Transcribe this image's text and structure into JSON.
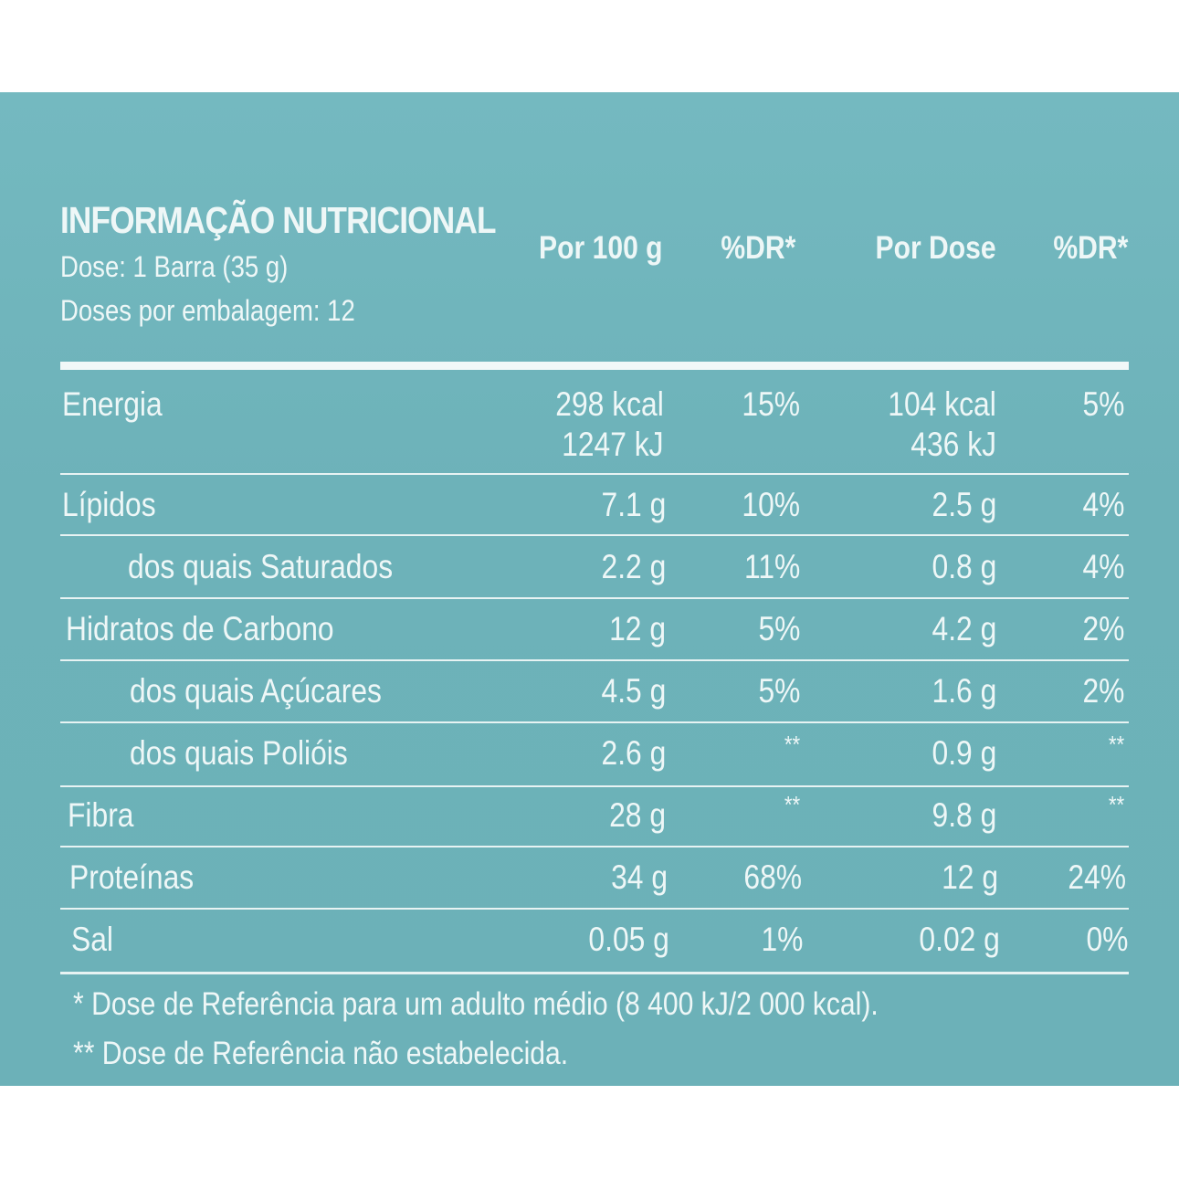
{
  "title": "INFORMAÇÃO NUTRICIONAL",
  "dose": "Dose: 1 Barra (35 g)",
  "doses_per_package": "Doses por embalagem: 12",
  "headers": [
    "Por 100 g",
    "%DR*",
    "Por Dose",
    "%DR*"
  ],
  "rows": [
    {
      "label": "Energia",
      "per100_1": "298 kcal",
      "per100_2": "1247 kJ",
      "dr100": "15%",
      "perdose_1": "104 kcal",
      "perdose_2": "436 kJ",
      "drdose": "5%"
    },
    {
      "label": "Lípidos",
      "per100_1": "7.1 g",
      "dr100": "10%",
      "perdose_1": "2.5 g",
      "drdose": "4%"
    },
    {
      "label": "dos quais Saturados",
      "per100_1": "2.2 g",
      "dr100": "11%",
      "perdose_1": "0.8 g",
      "drdose": "4%"
    },
    {
      "label": "Hidratos de Carbono",
      "per100_1": "12 g",
      "dr100": "5%",
      "perdose_1": "4.2 g",
      "drdose": "2%"
    },
    {
      "label": "dos quais Açúcares",
      "per100_1": "4.5 g",
      "dr100": "5%",
      "perdose_1": "1.6 g",
      "drdose": "2%"
    },
    {
      "label": "dos quais Polióis",
      "per100_1": "2.6 g",
      "dr100": "**",
      "perdose_1": "0.9 g",
      "drdose": "**"
    },
    {
      "label": "Fibra",
      "per100_1": "28 g",
      "dr100": "**",
      "perdose_1": "9.8 g",
      "drdose": "**"
    },
    {
      "label": "Proteínas",
      "per100_1": "34 g",
      "dr100": "68%",
      "perdose_1": "12 g",
      "drdose": "24%"
    },
    {
      "label": "Sal",
      "per100_1": "0.05 g",
      "dr100": "1%",
      "perdose_1": "0.02 g",
      "drdose": "0%"
    }
  ],
  "footnotes": [
    "* Dose de Referência para um adulto médio (8 400 kJ/2 000 kcal).",
    "** Dose de Referência não estabelecida."
  ],
  "colors": {
    "panel": "#6fb4bb",
    "text": "#eef7f7"
  }
}
